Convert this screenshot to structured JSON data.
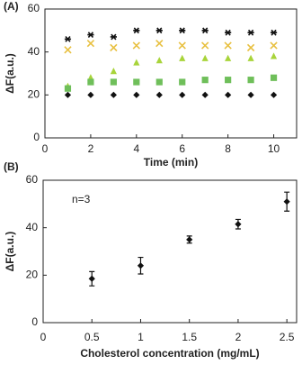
{
  "chart_data": [
    {
      "type": "scatter",
      "panel_label": "(A)",
      "x_label": "Time (min)",
      "y_label": "ΔF(a.u.)",
      "xlim": [
        0,
        11
      ],
      "xticks": [
        0,
        2,
        4,
        6,
        8,
        10
      ],
      "ylim": [
        0,
        60
      ],
      "yticks": [
        0,
        20,
        40,
        60
      ],
      "x": [
        1,
        2,
        3,
        4,
        5,
        6,
        7,
        8,
        9,
        10
      ],
      "series": [
        {
          "marker": "asterisk",
          "color": "#111111",
          "values": [
            46,
            48,
            47,
            50,
            50,
            50,
            50,
            49,
            49,
            49
          ]
        },
        {
          "marker": "x",
          "color": "#e8c040",
          "values": [
            41,
            44,
            42,
            43,
            44,
            43,
            43,
            43,
            42,
            43
          ]
        },
        {
          "marker": "triangle",
          "color": "#a8d43a",
          "values": [
            24,
            28,
            31,
            35,
            36,
            37,
            37,
            37,
            37,
            38
          ]
        },
        {
          "marker": "square",
          "color": "#6fbf5a",
          "values": [
            23,
            26,
            26,
            26,
            26,
            26,
            27,
            27,
            27,
            28
          ]
        },
        {
          "marker": "diamond",
          "color": "#111111",
          "values": [
            20,
            20,
            20,
            20,
            20,
            20,
            20,
            20,
            20,
            20
          ]
        }
      ]
    },
    {
      "type": "errorbar",
      "panel_label": "(B)",
      "x_label": "Cholesterol concentration (mg/mL)",
      "y_label": "ΔF(a.u.)",
      "annotation": "n=3",
      "xlim": [
        0,
        2.6
      ],
      "xticks": [
        0,
        0.5,
        1,
        1.5,
        2,
        2.5
      ],
      "ylim": [
        0,
        60
      ],
      "yticks": [
        0,
        20,
        40,
        60
      ],
      "x": [
        0.5,
        1,
        1.5,
        2,
        2.5
      ],
      "series": [
        {
          "marker": "diamond",
          "color": "#111111",
          "values": [
            18.5,
            24,
            35,
            41.5,
            51
          ],
          "errors": [
            3,
            3.5,
            1.5,
            2,
            4
          ]
        }
      ]
    }
  ]
}
